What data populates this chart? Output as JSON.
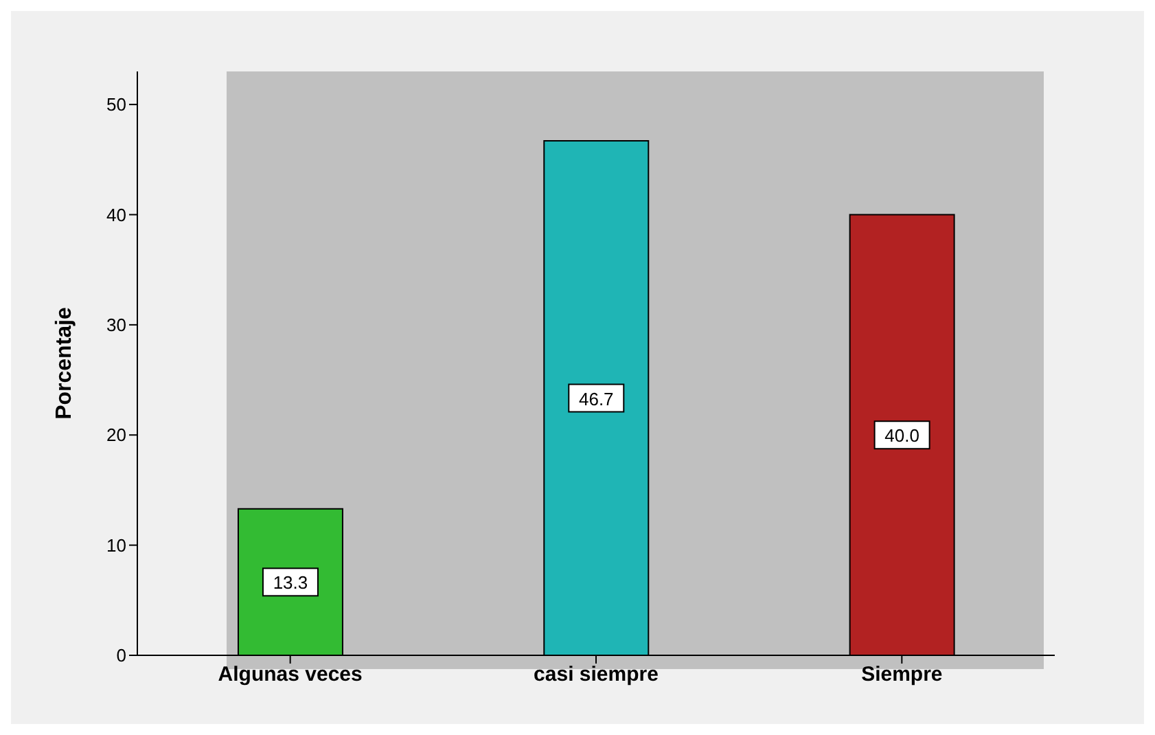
{
  "chart_data": {
    "type": "bar",
    "ylabel": "Porcentaje",
    "categories": [
      "Algunas veces",
      "casi siempre",
      "Siempre"
    ],
    "values": [
      13.3,
      46.7,
      40.0
    ],
    "value_labels": [
      "13.3",
      "46.7",
      "40.0"
    ],
    "colors": [
      "#33bb33",
      "#1fb5b5",
      "#b22222"
    ],
    "ylim": [
      0,
      53
    ],
    "yticks": [
      0,
      10,
      20,
      30,
      40,
      50
    ],
    "grid": false
  }
}
